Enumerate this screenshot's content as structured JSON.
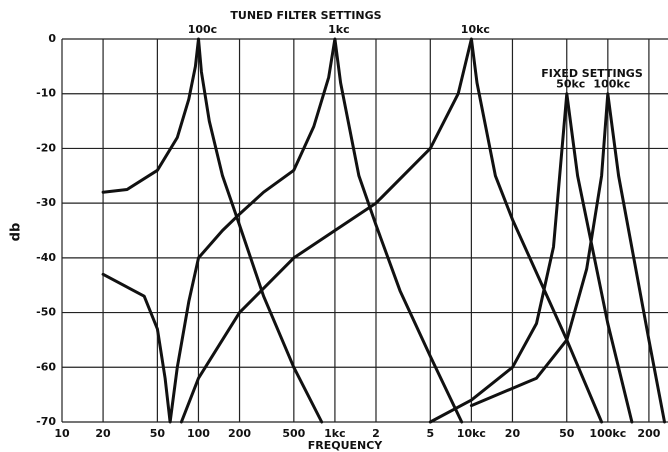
{
  "chart_data": {
    "type": "line",
    "title": "TUNED FILTER SETTINGS",
    "annotation": "FIXED SETTINGS",
    "xlabel": "FREQUENCY",
    "ylabel": "db",
    "xscale": "log",
    "grid": true,
    "xlim": [
      10,
      276000
    ],
    "ylim": [
      -70,
      0
    ],
    "xticks": [
      10,
      20,
      50,
      100,
      200,
      500,
      {
        "value": 1000,
        "label": "1kc"
      },
      {
        "value": 2000,
        "label": "2"
      },
      {
        "value": 5000,
        "label": "5"
      },
      {
        "value": 10000,
        "label": "10kc"
      },
      {
        "value": 20000,
        "label": "20"
      },
      {
        "value": 50000,
        "label": "50"
      },
      {
        "value": 100000,
        "label": "100kc"
      },
      {
        "value": 200000,
        "label": "200"
      }
    ],
    "yticks": [
      0,
      -10,
      -20,
      -30,
      -40,
      -50,
      -60,
      -70
    ],
    "series": [
      {
        "name": "100c",
        "color": "#111111",
        "x": [
          20,
          30,
          50,
          70,
          85,
          95,
          100,
          105,
          120,
          150,
          200,
          300,
          500,
          800
        ],
        "values": [
          -28,
          -27.5,
          -24,
          -18,
          -11,
          -5,
          0,
          -6,
          -15,
          -25,
          -34,
          -47,
          -60,
          -70
        ]
      },
      {
        "name": "1kc",
        "color": "#111111",
        "x": [
          20,
          40,
          50,
          57,
          62,
          70,
          85,
          100,
          150,
          200,
          300,
          500,
          700,
          900,
          1000,
          1100,
          1500,
          2000,
          3000,
          5000,
          8500
        ],
        "values": [
          -43,
          -47,
          -53,
          -62,
          -70,
          -60,
          -48,
          -40,
          -35,
          -32,
          -28,
          -24,
          -16,
          -7,
          0,
          -8,
          -25,
          -34,
          -46,
          -58,
          -70
        ]
      },
      {
        "name": "10kc",
        "color": "#111111",
        "x": [
          75,
          100,
          200,
          500,
          1000,
          2000,
          5000,
          8000,
          10000,
          11000,
          15000,
          20000,
          50000,
          90000
        ],
        "values": [
          -70,
          -62,
          -50,
          -40,
          -35,
          -30,
          -20,
          -10,
          0,
          -8,
          -25,
          -33,
          -55,
          -70
        ]
      },
      {
        "name": "50kc",
        "color": "#111111",
        "x": [
          5000,
          10000,
          20000,
          30000,
          40000,
          50000,
          60000,
          100000,
          150000
        ],
        "values": [
          -70,
          -66,
          -60,
          -52,
          -38,
          -10,
          -25,
          -52,
          -70
        ]
      },
      {
        "name": "100kc",
        "color": "#111111",
        "x": [
          10000,
          30000,
          50000,
          70000,
          90000,
          100000,
          120000,
          200000,
          260000
        ],
        "values": [
          -67,
          -62,
          -55,
          -42,
          -25,
          -10,
          -25,
          -55,
          -70
        ]
      }
    ]
  }
}
